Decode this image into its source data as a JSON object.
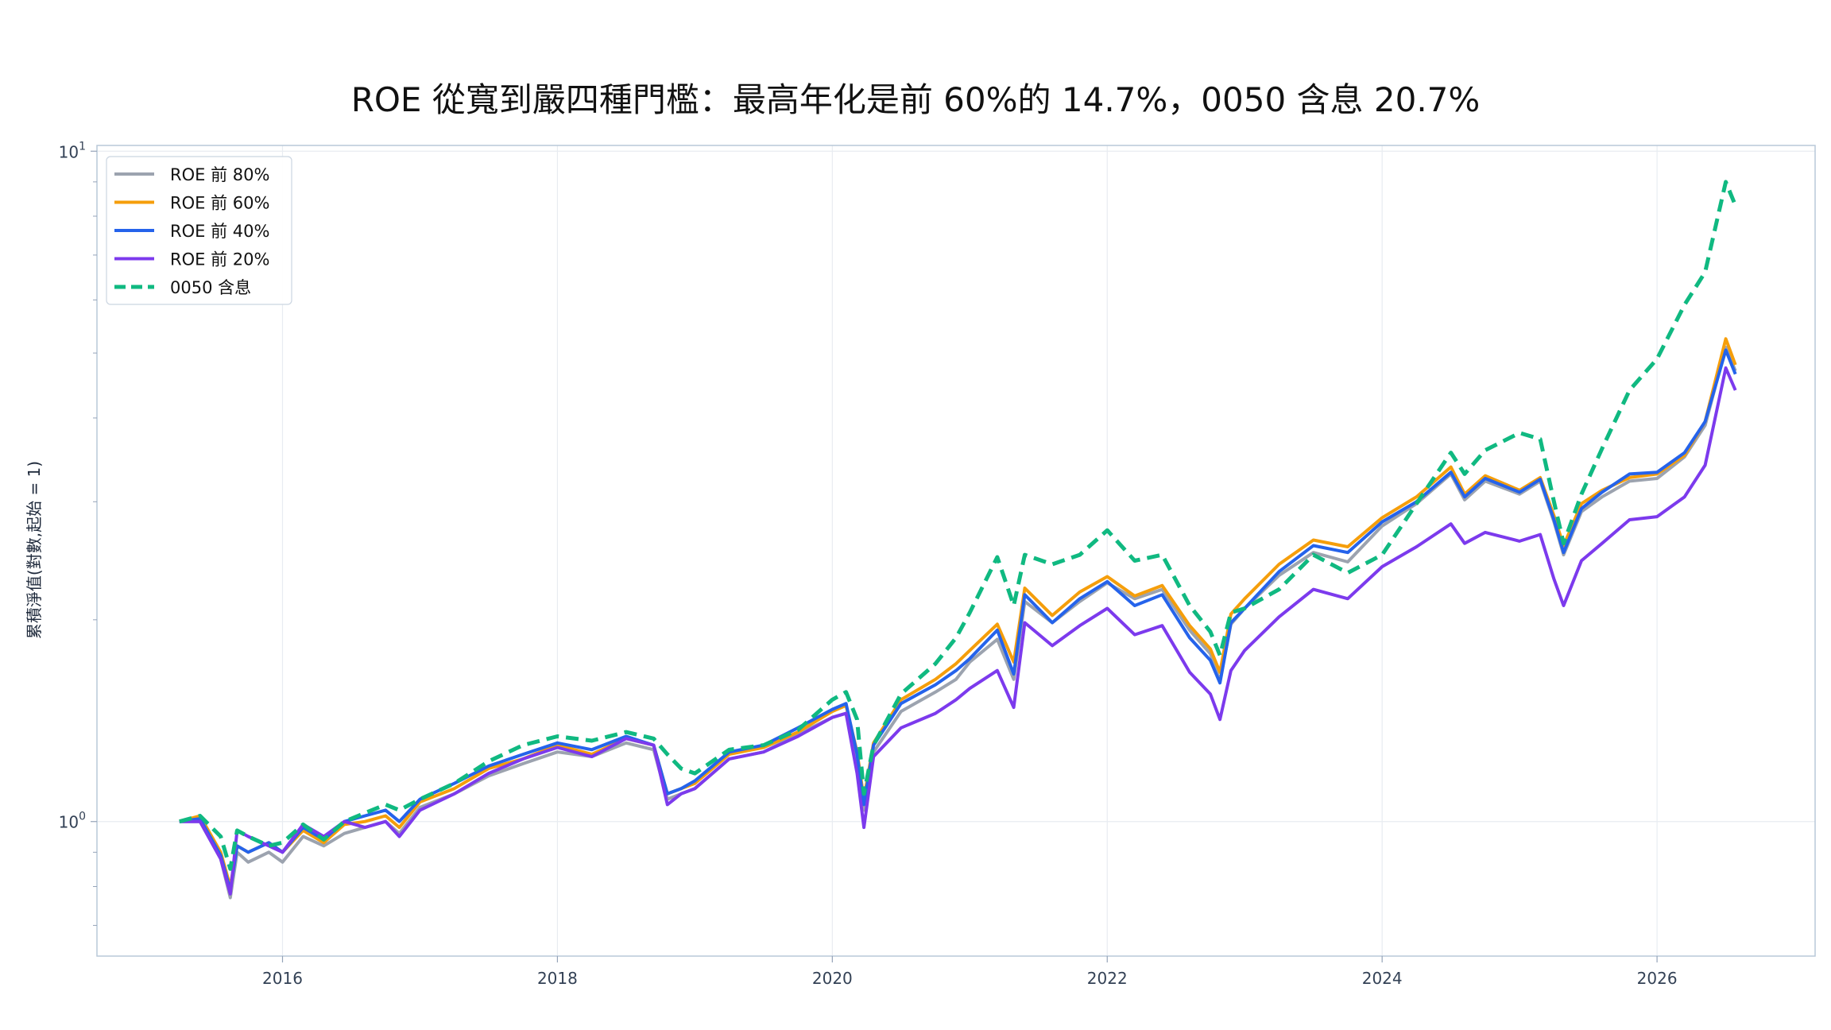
{
  "chart_data": {
    "type": "line",
    "title": "ROE 從寬到嚴四種門檻：最高年化是前 60%的 14.7%，0050 含息 20.7%",
    "xlabel": "",
    "ylabel": "累積淨值(對數,起始 = 1)",
    "yscale": "log",
    "xlim": [
      2014.65,
      2027.15
    ],
    "ylim": [
      0.63,
      10.2
    ],
    "grid": true,
    "legend_position": "top-left",
    "x_ticks": [
      2016,
      2018,
      2020,
      2022,
      2024,
      2026
    ],
    "x_tick_labels": [
      "2016",
      "2018",
      "2020",
      "2022",
      "2024",
      "2026"
    ],
    "y_ticks": [
      {
        "value": 1,
        "base": "10",
        "exp": "0"
      },
      {
        "value": 10,
        "base": "10",
        "exp": "1"
      }
    ],
    "x": [
      2015.25,
      2015.4,
      2015.55,
      2015.62,
      2015.67,
      2015.75,
      2015.9,
      2016.0,
      2016.15,
      2016.3,
      2016.45,
      2016.6,
      2016.75,
      2016.85,
      2017.0,
      2017.25,
      2017.5,
      2017.75,
      2018.0,
      2018.25,
      2018.5,
      2018.7,
      2018.8,
      2018.9,
      2019.0,
      2019.25,
      2019.5,
      2019.75,
      2020.0,
      2020.1,
      2020.18,
      2020.23,
      2020.3,
      2020.5,
      2020.75,
      2020.9,
      2021.0,
      2021.2,
      2021.32,
      2021.4,
      2021.6,
      2021.8,
      2022.0,
      2022.2,
      2022.4,
      2022.6,
      2022.75,
      2022.82,
      2022.9,
      2023.0,
      2023.25,
      2023.5,
      2023.75,
      2024.0,
      2024.25,
      2024.5,
      2024.6,
      2024.75,
      2025.0,
      2025.15,
      2025.25,
      2025.32,
      2025.45,
      2025.6,
      2025.8,
      2026.0,
      2026.2,
      2026.35,
      2026.5,
      2026.57
    ],
    "series": [
      {
        "name": "ROE 前 80%",
        "color": "#9ca3af",
        "dashed": false,
        "values": [
          1.0,
          1.0,
          0.88,
          0.77,
          0.9,
          0.87,
          0.9,
          0.87,
          0.95,
          0.92,
          0.96,
          0.98,
          1.0,
          0.96,
          1.05,
          1.1,
          1.17,
          1.22,
          1.27,
          1.25,
          1.31,
          1.28,
          1.08,
          1.1,
          1.12,
          1.24,
          1.27,
          1.35,
          1.43,
          1.45,
          1.22,
          1.04,
          1.27,
          1.46,
          1.56,
          1.63,
          1.73,
          1.87,
          1.63,
          2.13,
          1.98,
          2.13,
          2.27,
          2.15,
          2.22,
          1.93,
          1.78,
          1.62,
          1.97,
          2.08,
          2.33,
          2.52,
          2.44,
          2.76,
          2.98,
          3.3,
          3.02,
          3.22,
          3.08,
          3.22,
          2.8,
          2.5,
          2.9,
          3.05,
          3.22,
          3.25,
          3.5,
          3.9,
          5.1,
          4.7
        ]
      },
      {
        "name": "ROE 前 60%",
        "color": "#f59e0b",
        "dashed": false,
        "values": [
          1.0,
          1.02,
          0.9,
          0.8,
          0.92,
          0.9,
          0.93,
          0.9,
          0.97,
          0.93,
          0.99,
          1.0,
          1.02,
          0.98,
          1.07,
          1.12,
          1.2,
          1.24,
          1.3,
          1.26,
          1.33,
          1.3,
          1.1,
          1.12,
          1.14,
          1.26,
          1.29,
          1.36,
          1.46,
          1.49,
          1.27,
          1.08,
          1.31,
          1.52,
          1.63,
          1.72,
          1.8,
          1.97,
          1.73,
          2.23,
          2.03,
          2.2,
          2.32,
          2.17,
          2.25,
          1.96,
          1.81,
          1.67,
          2.04,
          2.15,
          2.42,
          2.63,
          2.57,
          2.84,
          3.05,
          3.38,
          3.08,
          3.28,
          3.12,
          3.26,
          2.86,
          2.58,
          2.98,
          3.12,
          3.26,
          3.3,
          3.52,
          3.95,
          5.25,
          4.8
        ]
      },
      {
        "name": "ROE 前 40%",
        "color": "#2563eb",
        "dashed": false,
        "values": [
          1.0,
          1.01,
          0.89,
          0.79,
          0.92,
          0.9,
          0.93,
          0.9,
          0.98,
          0.94,
          1.0,
          1.02,
          1.04,
          1.0,
          1.08,
          1.14,
          1.21,
          1.26,
          1.31,
          1.28,
          1.34,
          1.3,
          1.1,
          1.12,
          1.15,
          1.27,
          1.3,
          1.38,
          1.47,
          1.5,
          1.26,
          1.06,
          1.3,
          1.5,
          1.6,
          1.68,
          1.75,
          1.93,
          1.66,
          2.18,
          1.98,
          2.15,
          2.28,
          2.1,
          2.18,
          1.88,
          1.74,
          1.61,
          1.98,
          2.08,
          2.36,
          2.58,
          2.52,
          2.8,
          3.0,
          3.32,
          3.05,
          3.25,
          3.1,
          3.24,
          2.82,
          2.52,
          2.93,
          3.1,
          3.3,
          3.32,
          3.55,
          3.95,
          5.05,
          4.65
        ]
      },
      {
        "name": "ROE 前 20%",
        "color": "#7c3aed",
        "dashed": false,
        "values": [
          1.0,
          1.0,
          0.88,
          0.78,
          0.97,
          0.95,
          0.92,
          0.9,
          0.99,
          0.95,
          1.0,
          0.98,
          1.0,
          0.95,
          1.04,
          1.1,
          1.18,
          1.24,
          1.29,
          1.25,
          1.33,
          1.3,
          1.06,
          1.1,
          1.12,
          1.24,
          1.27,
          1.34,
          1.43,
          1.45,
          1.18,
          0.98,
          1.25,
          1.38,
          1.45,
          1.52,
          1.58,
          1.68,
          1.48,
          1.98,
          1.83,
          1.96,
          2.08,
          1.9,
          1.96,
          1.67,
          1.55,
          1.42,
          1.68,
          1.8,
          2.02,
          2.22,
          2.15,
          2.4,
          2.57,
          2.78,
          2.6,
          2.7,
          2.62,
          2.68,
          2.3,
          2.1,
          2.45,
          2.6,
          2.82,
          2.85,
          3.05,
          3.4,
          4.75,
          4.4
        ]
      },
      {
        "name": "0050 含息",
        "color": "#10b981",
        "dashed": true,
        "values": [
          1.0,
          1.02,
          0.95,
          0.85,
          0.97,
          0.95,
          0.92,
          0.93,
          0.99,
          0.94,
          1.0,
          1.03,
          1.06,
          1.04,
          1.08,
          1.14,
          1.23,
          1.3,
          1.34,
          1.32,
          1.36,
          1.33,
          1.26,
          1.2,
          1.18,
          1.28,
          1.3,
          1.37,
          1.52,
          1.56,
          1.42,
          1.1,
          1.3,
          1.55,
          1.72,
          1.88,
          2.05,
          2.48,
          2.1,
          2.5,
          2.42,
          2.5,
          2.72,
          2.45,
          2.5,
          2.1,
          1.92,
          1.77,
          2.05,
          2.08,
          2.22,
          2.5,
          2.35,
          2.5,
          2.98,
          3.55,
          3.3,
          3.58,
          3.8,
          3.72,
          3.0,
          2.6,
          3.08,
          3.6,
          4.4,
          4.9,
          5.9,
          6.6,
          9.0,
          8.3
        ]
      }
    ]
  }
}
